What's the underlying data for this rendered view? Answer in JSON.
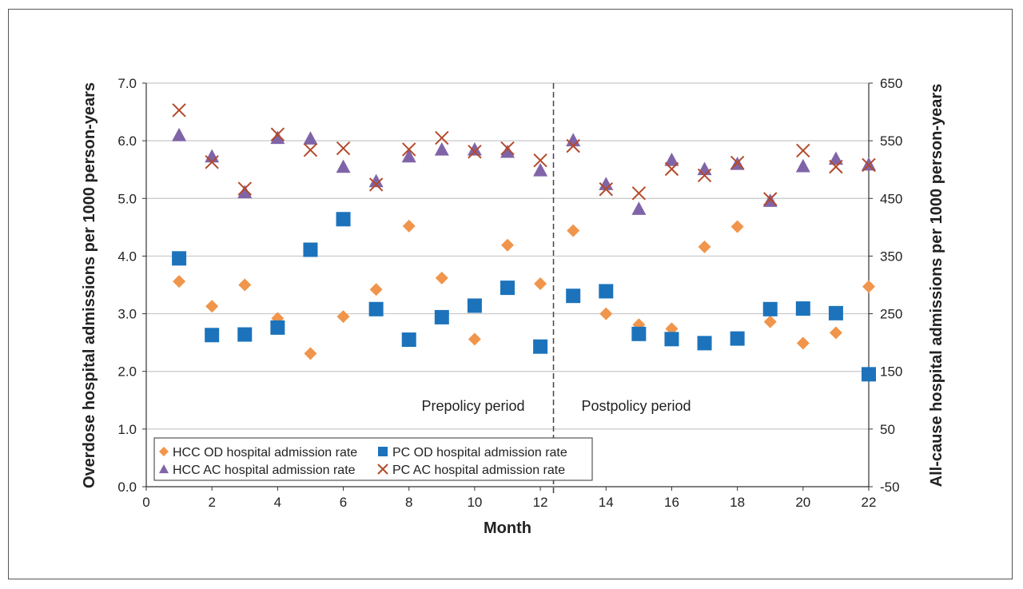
{
  "chart_data": {
    "type": "scatter",
    "xlabel": "Month",
    "ylabel": "Overdose hospital admissions per 1000 person-years",
    "y2label": "All-cause hospital admissions per 1000 person-years",
    "xlim": [
      0,
      22
    ],
    "ylim": [
      0,
      7
    ],
    "y2lim": [
      -50,
      650
    ],
    "x_ticks": [
      "0",
      "2",
      "4",
      "6",
      "8",
      "10",
      "12",
      "14",
      "16",
      "18",
      "20",
      "22"
    ],
    "y_ticks": [
      "0.0",
      "1.0",
      "2.0",
      "3.0",
      "4.0",
      "5.0",
      "6.0",
      "7.0"
    ],
    "y2_ticks": [
      "-50",
      "50",
      "150",
      "250",
      "350",
      "450",
      "550",
      "650"
    ],
    "grid": true,
    "policy_change_x": 12.4,
    "annotations": {
      "pre": "Prepolicy period",
      "post": "Postpolicy period"
    },
    "legend_position": "bottom-left",
    "series": [
      {
        "name": "HCC OD hospital admission rate",
        "axis": "left",
        "marker": "diamond",
        "color": "#f0954b",
        "x": [
          1,
          2,
          3,
          4,
          5,
          6,
          7,
          8,
          9,
          10,
          11,
          12,
          13,
          14,
          15,
          16,
          17,
          18,
          19,
          20,
          21,
          22
        ],
        "y": [
          3.56,
          3.13,
          3.5,
          2.92,
          2.31,
          2.95,
          3.42,
          4.52,
          3.62,
          2.56,
          4.19,
          3.52,
          4.44,
          3.0,
          2.81,
          2.74,
          4.16,
          4.51,
          2.86,
          2.49,
          2.67,
          3.47
        ]
      },
      {
        "name": "PC OD hospital admission rate",
        "axis": "left",
        "marker": "square",
        "color": "#1c73bb",
        "x": [
          1,
          2,
          3,
          4,
          5,
          6,
          7,
          8,
          9,
          10,
          11,
          12,
          13,
          14,
          15,
          16,
          17,
          18,
          19,
          20,
          21,
          22
        ],
        "y": [
          3.96,
          2.63,
          2.64,
          2.76,
          4.11,
          4.64,
          3.08,
          2.55,
          2.94,
          3.14,
          3.45,
          2.43,
          3.31,
          3.39,
          2.65,
          2.56,
          2.49,
          2.57,
          3.08,
          3.09,
          3.01,
          1.95
        ]
      },
      {
        "name": "HCC AC hospital admission rate",
        "axis": "right",
        "marker": "triangle",
        "color": "#8064a8",
        "x": [
          1,
          2,
          3,
          4,
          5,
          6,
          7,
          8,
          9,
          10,
          11,
          12,
          13,
          14,
          15,
          16,
          17,
          18,
          19,
          20,
          21,
          22
        ],
        "y": [
          560,
          523,
          461,
          555,
          554,
          505,
          480,
          523,
          535,
          535,
          531,
          499,
          551,
          475,
          432,
          517,
          501,
          510,
          446,
          506,
          519,
          509
        ]
      },
      {
        "name": "PC AC hospital admission rate",
        "axis": "right",
        "marker": "x",
        "color": "#b34a2a",
        "x": [
          1,
          2,
          3,
          4,
          5,
          6,
          7,
          8,
          9,
          10,
          11,
          12,
          13,
          14,
          15,
          16,
          17,
          18,
          19,
          20,
          21,
          22
        ],
        "y": [
          603,
          513,
          467,
          561,
          534,
          537,
          474,
          535,
          555,
          531,
          537,
          516,
          541,
          466,
          459,
          501,
          490,
          512,
          449,
          533,
          505,
          508
        ]
      }
    ]
  }
}
